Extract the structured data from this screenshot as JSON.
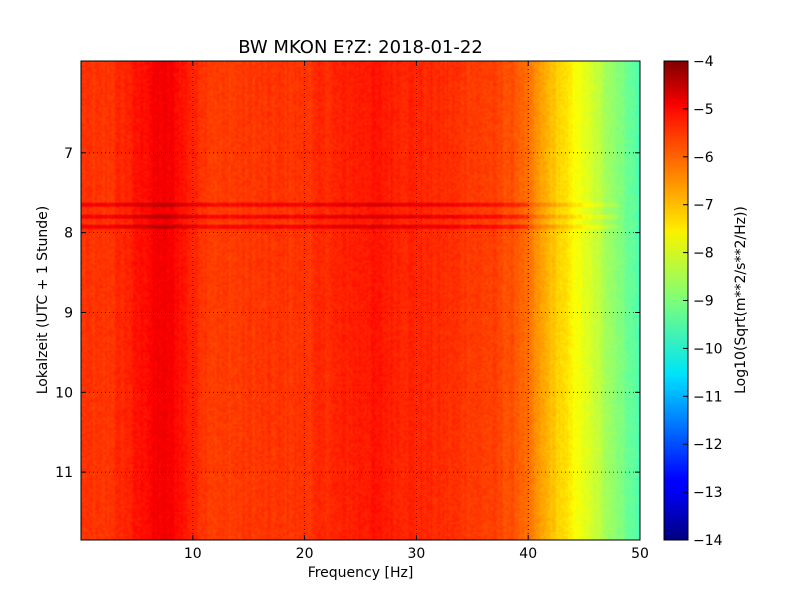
{
  "chart_data": {
    "type": "heatmap",
    "title": "BW MKON E?Z: 2018-01-22",
    "xlabel": "Frequency [Hz]",
    "ylabel": "Lokalzeit (UTC + 1 Stunde)",
    "xlim": [
      0,
      50
    ],
    "ylim": [
      5.85,
      11.85
    ],
    "y_inverted": true,
    "grid": true,
    "x_ticks": [
      10,
      20,
      30,
      40,
      50
    ],
    "y_ticks": [
      7,
      8,
      9,
      10,
      11
    ],
    "colorbar": {
      "label": "Log10(Sqrt(m**2/s**2/Hz))",
      "range": [
        -14,
        -4
      ],
      "ticks": [
        -4,
        -5,
        -6,
        -7,
        -8,
        -9,
        -10,
        -11,
        -12,
        -13,
        -14
      ],
      "colormap": "jet"
    },
    "spectral_profile": {
      "frequency_hz": [
        0,
        2,
        4,
        6,
        7,
        8,
        9,
        10,
        12,
        15,
        20,
        24,
        26,
        28,
        30,
        34,
        37,
        39,
        40,
        41,
        42,
        43,
        44,
        45,
        46,
        47,
        48,
        49,
        50
      ],
      "level_log10": [
        -5.75,
        -5.8,
        -5.6,
        -5.3,
        -5.15,
        -5.2,
        -5.4,
        -5.6,
        -5.85,
        -5.8,
        -5.75,
        -5.55,
        -5.45,
        -5.55,
        -5.6,
        -5.75,
        -5.9,
        -6.1,
        -6.4,
        -6.8,
        -7.1,
        -7.4,
        -7.7,
        -8.0,
        -8.3,
        -8.6,
        -8.9,
        -9.2,
        -9.5
      ]
    },
    "disturbance_bands": [
      {
        "time_hour": 7.65,
        "from_hz": 0,
        "to_hz": 50
      },
      {
        "time_hour": 7.8,
        "from_hz": 0,
        "to_hz": 50
      },
      {
        "time_hour": 7.93,
        "from_hz": 0,
        "to_hz": 50
      }
    ]
  },
  "colors": {
    "background": "#ffffff",
    "axes_frame": "#000000",
    "grid": "#000000"
  }
}
